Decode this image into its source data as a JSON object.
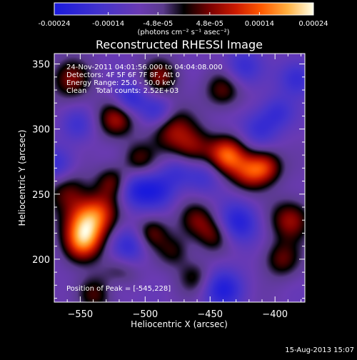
{
  "footer": {
    "timestamp": "15-Aug-2013 15:07"
  },
  "colorbar": {
    "min": -0.00024,
    "max": 0.00024,
    "tick_labels": [
      "-0.00024",
      "-0.00014",
      "-4.8e-05",
      "4.8e-05",
      "0.00014",
      "0.00024"
    ],
    "units_label": "(photons cm⁻² s⁻¹ asec⁻²)"
  },
  "chart_data": {
    "type": "heatmap",
    "title": "Reconstructed RHESSI Image",
    "xlabel": "Heliocentric X (arcsec)",
    "ylabel": "Heliocentric Y (arcsec)",
    "xlim": [
      -570,
      -377
    ],
    "ylim": [
      167,
      358
    ],
    "x_ticks": [
      -550,
      -500,
      -450,
      -400
    ],
    "y_ticks": [
      200,
      250,
      300,
      350
    ],
    "x_tick_labels": [
      "−550",
      "−500",
      "−450",
      "−400"
    ],
    "y_tick_labels": [
      "200",
      "250",
      "300",
      "350"
    ],
    "colormap": "rhessi-purple-red-yellow",
    "annotations": [
      "24-Nov-2011 04:01:56.000 to 04:04:08.000",
      "Detectors: 4F 5F 6F 7F 8F, Att 0",
      "Energy Range: 25.0 - 50.0 keV",
      "Clean    Total counts: 2.52E+03"
    ],
    "peak_label": "Position of Peak = [-545,228]",
    "peak_position": [
      -545,
      228
    ],
    "total_counts": "2.52E+03",
    "sources": [
      {
        "x": -545,
        "y": 228,
        "amp": 1.0,
        "sigma": 12
      },
      {
        "x": -548,
        "y": 212,
        "amp": 0.7,
        "sigma": 10
      },
      {
        "x": -560,
        "y": 252,
        "amp": 0.45,
        "sigma": 11
      },
      {
        "x": -522,
        "y": 308,
        "amp": 0.6,
        "sigma": 10
      },
      {
        "x": -557,
        "y": 338,
        "amp": 0.5,
        "sigma": 11
      },
      {
        "x": -525,
        "y": 259,
        "amp": 0.5,
        "sigma": 9
      },
      {
        "x": -533,
        "y": 238,
        "amp": 0.35,
        "sigma": 10
      },
      {
        "x": -480,
        "y": 300,
        "amp": 0.55,
        "sigma": 12
      },
      {
        "x": -463,
        "y": 285,
        "amp": 0.5,
        "sigma": 11
      },
      {
        "x": -437,
        "y": 280,
        "amp": 0.85,
        "sigma": 10
      },
      {
        "x": -420,
        "y": 267,
        "amp": 0.65,
        "sigma": 10
      },
      {
        "x": -407,
        "y": 271,
        "amp": 0.6,
        "sigma": 9
      },
      {
        "x": -440,
        "y": 330,
        "amp": 0.45,
        "sigma": 10
      },
      {
        "x": -488,
        "y": 340,
        "amp": 0.5,
        "sigma": 10
      },
      {
        "x": -505,
        "y": 277,
        "amp": 0.4,
        "sigma": 9
      },
      {
        "x": -495,
        "y": 220,
        "amp": 0.45,
        "sigma": 9
      },
      {
        "x": -460,
        "y": 230,
        "amp": 0.45,
        "sigma": 10
      },
      {
        "x": -447,
        "y": 218,
        "amp": 0.4,
        "sigma": 9
      },
      {
        "x": -478,
        "y": 206,
        "amp": 0.35,
        "sigma": 9
      },
      {
        "x": -462,
        "y": 186,
        "amp": 0.35,
        "sigma": 9
      },
      {
        "x": -388,
        "y": 230,
        "amp": 0.6,
        "sigma": 11
      },
      {
        "x": -395,
        "y": 200,
        "amp": 0.45,
        "sigma": 10
      },
      {
        "x": -520,
        "y": 188,
        "amp": 0.4,
        "sigma": 10
      },
      {
        "x": -540,
        "y": 173,
        "amp": 0.45,
        "sigma": 10
      },
      {
        "x": -508,
        "y": 253,
        "amp": -0.5,
        "sigma": 10
      },
      {
        "x": -490,
        "y": 313,
        "amp": -0.45,
        "sigma": 9
      },
      {
        "x": -512,
        "y": 323,
        "amp": -0.5,
        "sigma": 9
      },
      {
        "x": -490,
        "y": 253,
        "amp": -0.45,
        "sigma": 10
      },
      {
        "x": -455,
        "y": 264,
        "amp": -0.35,
        "sigma": 10
      },
      {
        "x": -428,
        "y": 228,
        "amp": -0.55,
        "sigma": 11
      },
      {
        "x": -383,
        "y": 339,
        "amp": -0.45,
        "sigma": 10
      },
      {
        "x": -412,
        "y": 300,
        "amp": -0.4,
        "sigma": 10
      },
      {
        "x": -512,
        "y": 210,
        "amp": -0.45,
        "sigma": 10
      },
      {
        "x": -440,
        "y": 177,
        "amp": -0.55,
        "sigma": 11
      },
      {
        "x": -522,
        "y": 180,
        "amp": -0.3,
        "sigma": 9
      },
      {
        "x": -568,
        "y": 272,
        "amp": -0.4,
        "sigma": 10
      },
      {
        "x": -552,
        "y": 303,
        "amp": -0.3,
        "sigma": 9
      },
      {
        "x": -425,
        "y": 348,
        "amp": -0.4,
        "sigma": 10
      },
      {
        "x": -398,
        "y": 313,
        "amp": -0.35,
        "sigma": 9
      },
      {
        "x": -475,
        "y": 268,
        "amp": -0.3,
        "sigma": 9
      }
    ]
  }
}
